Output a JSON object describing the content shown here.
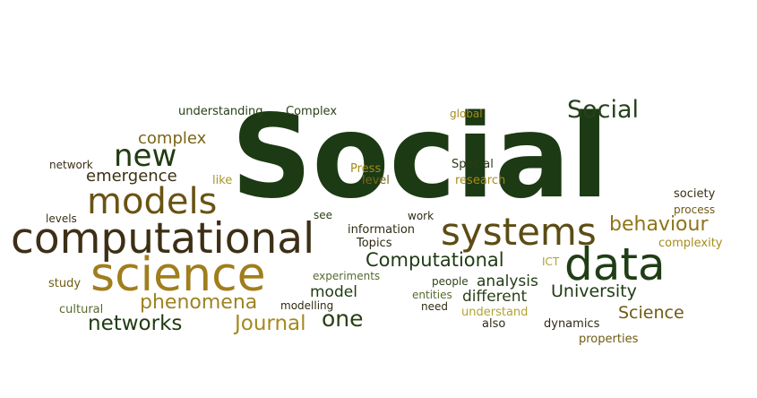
{
  "palette": {
    "dark_green": "#1f3b12",
    "darker_green": "#203810",
    "olive": "#6e5b14",
    "gold": "#a68c1a",
    "light_gold": "#b3a231",
    "brown": "#43351a",
    "sage": "#556b2f",
    "deep": "#2e2a12"
  },
  "words": [
    {
      "id": "social-main",
      "text": "Social",
      "color": "#1c3a13"
    },
    {
      "id": "computational-big",
      "text": "computational",
      "color": "#3d2f16"
    },
    {
      "id": "science-big",
      "text": "science",
      "color": "#a07e1c"
    },
    {
      "id": "data",
      "text": "data",
      "color": "#203d15"
    },
    {
      "id": "systems",
      "text": "systems",
      "color": "#5c4c14"
    },
    {
      "id": "models",
      "text": "models",
      "color": "#6a5312"
    },
    {
      "id": "new",
      "text": "new",
      "color": "#213b12"
    },
    {
      "id": "social-small",
      "text": "Social",
      "color": "#26411a"
    },
    {
      "id": "computational-mid",
      "text": "Computational",
      "color": "#1f3b13"
    },
    {
      "id": "phenomena",
      "text": "phenomena",
      "color": "#9e8322"
    },
    {
      "id": "networks",
      "text": "networks",
      "color": "#1f3b12"
    },
    {
      "id": "journal",
      "text": "Journal",
      "color": "#a4891f"
    },
    {
      "id": "one",
      "text": "one",
      "color": "#294016"
    },
    {
      "id": "behaviour",
      "text": "behaviour",
      "color": "#8e7419"
    },
    {
      "id": "university",
      "text": "University",
      "color": "#1f3b12"
    },
    {
      "id": "science-small",
      "text": "Science",
      "color": "#6e5b14"
    },
    {
      "id": "emergence",
      "text": "emergence",
      "color": "#3c3114"
    },
    {
      "id": "complex-lower",
      "text": "complex",
      "color": "#7a6617"
    },
    {
      "id": "different",
      "text": "different",
      "color": "#2a3f17"
    },
    {
      "id": "analysis",
      "text": "analysis",
      "color": "#1f3b12"
    },
    {
      "id": "model",
      "text": "model",
      "color": "#1f3b12"
    },
    {
      "id": "understanding",
      "text": "understanding",
      "color": "#284116"
    },
    {
      "id": "complex-upper",
      "text": "Complex",
      "color": "#2e4218"
    },
    {
      "id": "global",
      "text": "global",
      "color": "#a68c1a"
    },
    {
      "id": "network",
      "text": "network",
      "color": "#3a3016"
    },
    {
      "id": "like",
      "text": "like",
      "color": "#a8962c"
    },
    {
      "id": "press",
      "text": "Press",
      "color": "#a68c1a"
    },
    {
      "id": "level",
      "text": "level",
      "color": "#7a6617"
    },
    {
      "id": "special",
      "text": "Special",
      "color": "#2d3c16"
    },
    {
      "id": "research",
      "text": "research",
      "color": "#a68c1a"
    },
    {
      "id": "society",
      "text": "society",
      "color": "#3a3016"
    },
    {
      "id": "process",
      "text": "process",
      "color": "#6e5b14"
    },
    {
      "id": "complexity",
      "text": "complexity",
      "color": "#a68c1a"
    },
    {
      "id": "levels",
      "text": "levels",
      "color": "#3a3016"
    },
    {
      "id": "see",
      "text": "see",
      "color": "#2e4218"
    },
    {
      "id": "work",
      "text": "work",
      "color": "#2e2a12"
    },
    {
      "id": "information",
      "text": "information",
      "color": "#2e2a12"
    },
    {
      "id": "topics",
      "text": "Topics",
      "color": "#2e2a12"
    },
    {
      "id": "ict",
      "text": "ICT",
      "color": "#b3a231"
    },
    {
      "id": "study",
      "text": "study",
      "color": "#6e5b14"
    },
    {
      "id": "experiments",
      "text": "experiments",
      "color": "#556b2f"
    },
    {
      "id": "people",
      "text": "people",
      "color": "#2e4218"
    },
    {
      "id": "entities",
      "text": "entities",
      "color": "#556b2f"
    },
    {
      "id": "cultural",
      "text": "cultural",
      "color": "#556b2f"
    },
    {
      "id": "modelling",
      "text": "modelling",
      "color": "#2e2a12"
    },
    {
      "id": "need",
      "text": "need",
      "color": "#2e2a12"
    },
    {
      "id": "understand",
      "text": "understand",
      "color": "#b3a231"
    },
    {
      "id": "dynamics",
      "text": "dynamics",
      "color": "#2e2a12"
    },
    {
      "id": "also",
      "text": "also",
      "color": "#2e2a12"
    },
    {
      "id": "properties",
      "text": "properties",
      "color": "#6e5b14"
    }
  ]
}
